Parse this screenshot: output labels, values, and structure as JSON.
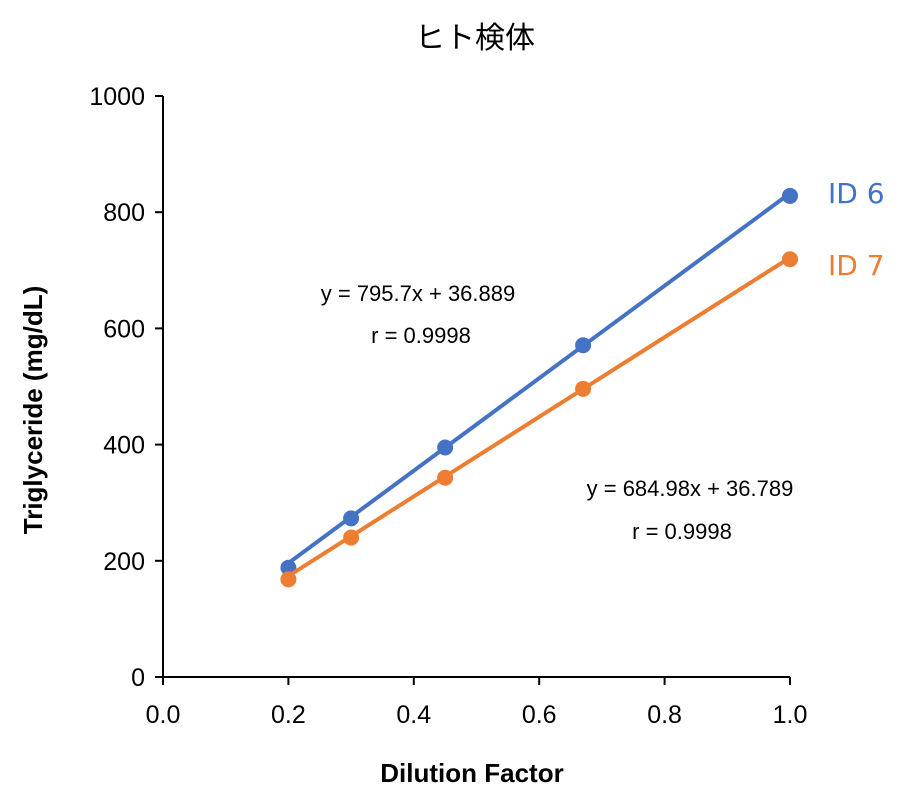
{
  "chart_data": {
    "type": "scatter",
    "title": "ヒト検体",
    "xlabel": "Dilution Factor",
    "ylabel": "Triglyceride (mg/dL)",
    "xlim": [
      0.0,
      1.0
    ],
    "ylim": [
      0,
      1000
    ],
    "x_ticks": [
      "0.0",
      "0.2",
      "0.4",
      "0.6",
      "0.8",
      "1.0"
    ],
    "y_ticks": [
      "0",
      "200",
      "400",
      "600",
      "800",
      "1000"
    ],
    "grid": false,
    "series": [
      {
        "name": "ID 6",
        "color": "#4472C4",
        "x": [
          0.2,
          0.3,
          0.45,
          0.67,
          1.0
        ],
        "y": [
          188,
          273,
          395,
          571,
          828
        ],
        "trendline": {
          "slope": 795.7,
          "intercept": 36.889
        },
        "equation": "y = 795.7x + 36.889",
        "r": "r = 0.9998"
      },
      {
        "name": "ID 7",
        "color": "#ED7D31",
        "x": [
          0.2,
          0.3,
          0.45,
          0.67,
          1.0
        ],
        "y": [
          168,
          240,
          343,
          496,
          719
        ],
        "trendline": {
          "slope": 684.98,
          "intercept": 36.789
        },
        "equation": "y = 684.98x + 36.789",
        "r": "r = 0.9998"
      }
    ]
  }
}
